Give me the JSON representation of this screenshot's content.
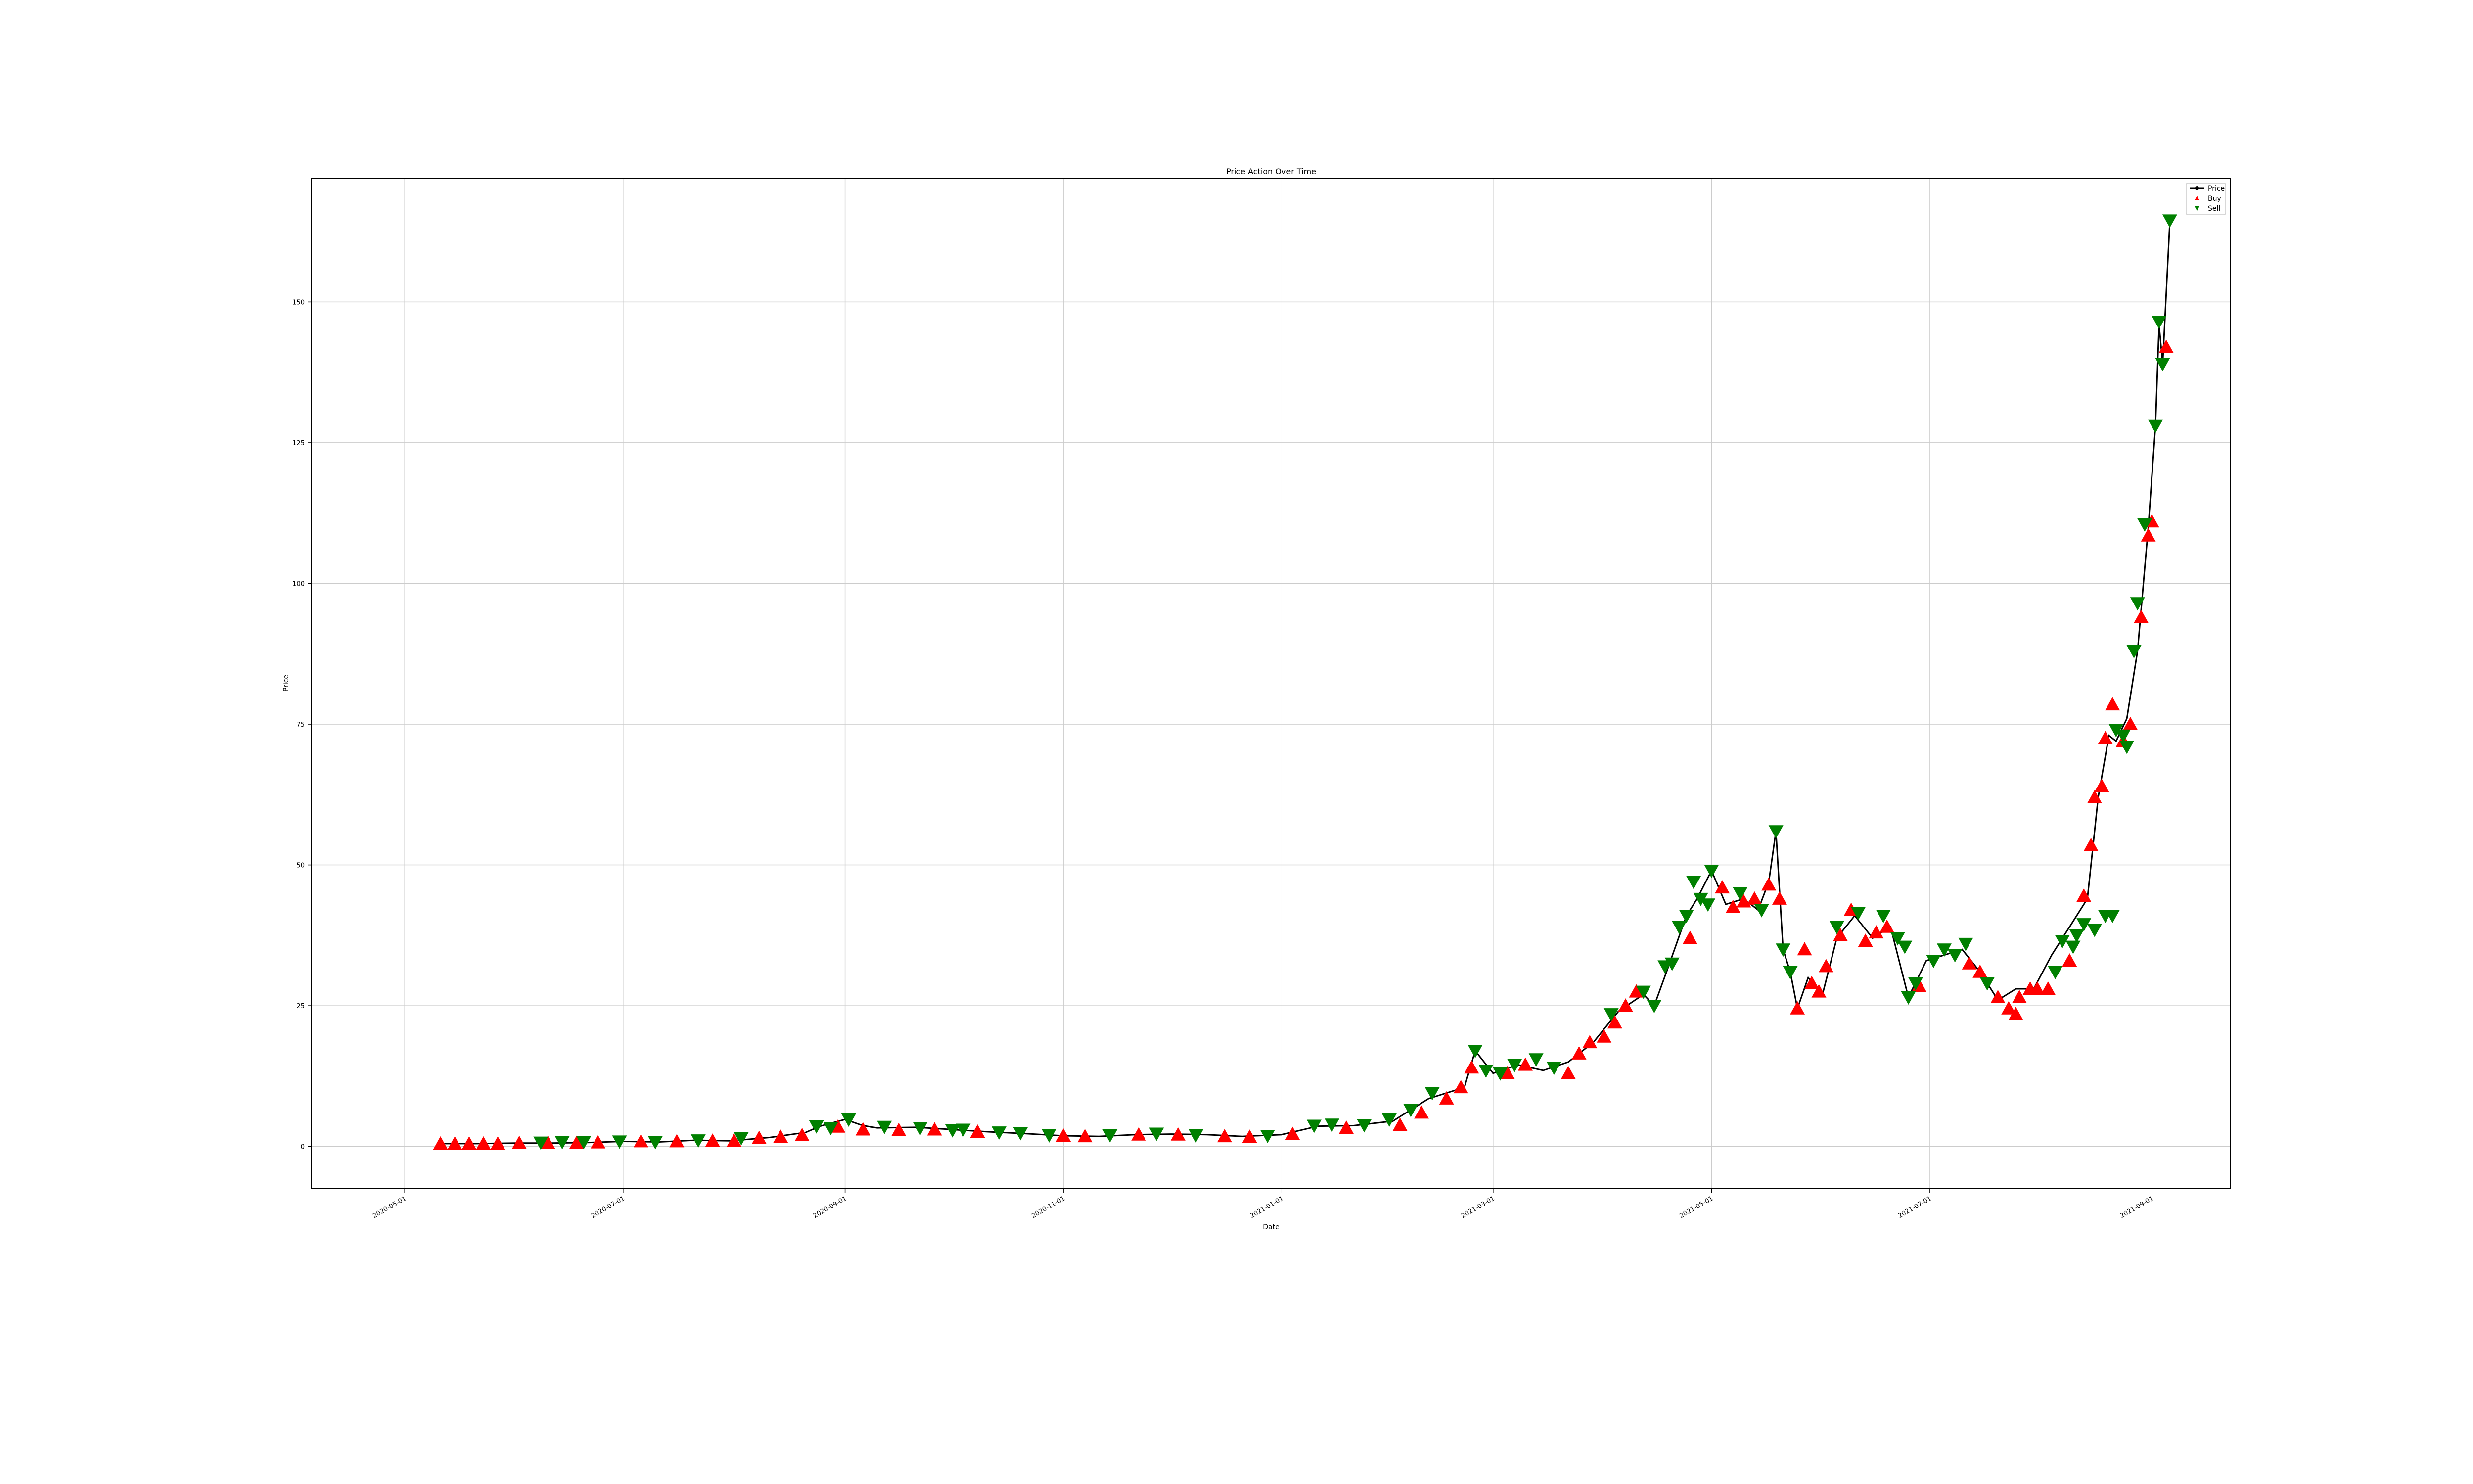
{
  "chart_data": {
    "type": "line",
    "title": "Price Action Over Time",
    "xlabel": "Date",
    "ylabel": "Price",
    "x_range": [
      "2020-04-05",
      "2021-09-23"
    ],
    "ylim": [
      -7.5,
      172
    ],
    "y_ticks": [
      0,
      25,
      50,
      75,
      100,
      125,
      150
    ],
    "x_ticks": [
      "2020-05-01",
      "2020-07-01",
      "2020-09-01",
      "2020-11-01",
      "2021-01-01",
      "2021-03-01",
      "2021-05-01",
      "2021-07-01",
      "2021-09-01"
    ],
    "grid": true,
    "legend": {
      "position": "top-right",
      "entries": [
        {
          "label": "Price",
          "marker": "line-dot",
          "color": "#000000"
        },
        {
          "label": "Buy",
          "marker": "triangle-up",
          "color": "#ff0000"
        },
        {
          "label": "Sell",
          "marker": "triangle-down",
          "color": "#008000"
        }
      ]
    },
    "colors": {
      "price": "#000000",
      "buy": "#ff0000",
      "sell": "#008000",
      "grid": "#cccccc"
    },
    "series": [
      {
        "name": "Price",
        "points": [
          [
            "2020-05-11",
            0.5
          ],
          [
            "2020-05-21",
            0.5
          ],
          [
            "2020-06-01",
            0.6
          ],
          [
            "2020-06-11",
            0.6
          ],
          [
            "2020-06-21",
            0.7
          ],
          [
            "2020-07-01",
            0.9
          ],
          [
            "2020-07-11",
            0.8
          ],
          [
            "2020-07-21",
            1.1
          ],
          [
            "2020-07-31",
            1.0
          ],
          [
            "2020-08-11",
            1.6
          ],
          [
            "2020-08-21",
            2.5
          ],
          [
            "2020-08-25",
            3.6
          ],
          [
            "2020-09-01",
            4.8
          ],
          [
            "2020-09-06",
            3.7
          ],
          [
            "2020-09-10",
            3.3
          ],
          [
            "2020-09-21",
            3.4
          ],
          [
            "2020-10-01",
            3.0
          ],
          [
            "2020-10-11",
            2.6
          ],
          [
            "2020-10-21",
            2.3
          ],
          [
            "2020-11-01",
            1.9
          ],
          [
            "2020-11-11",
            1.8
          ],
          [
            "2020-11-21",
            2.1
          ],
          [
            "2020-12-01",
            2.2
          ],
          [
            "2020-12-11",
            2.1
          ],
          [
            "2020-12-21",
            1.8
          ],
          [
            "2021-01-01",
            2.1
          ],
          [
            "2021-01-11",
            3.6
          ],
          [
            "2021-01-21",
            3.7
          ],
          [
            "2021-02-01",
            4.5
          ],
          [
            "2021-02-11",
            8.5
          ],
          [
            "2021-02-21",
            10.5
          ],
          [
            "2021-02-24",
            17.0
          ],
          [
            "2021-03-01",
            13.0
          ],
          [
            "2021-03-08",
            14.5
          ],
          [
            "2021-03-15",
            13.5
          ],
          [
            "2021-03-22",
            15.0
          ],
          [
            "2021-03-29",
            18.5
          ],
          [
            "2021-04-05",
            24.0
          ],
          [
            "2021-04-12",
            27.0
          ],
          [
            "2021-04-15",
            25.0
          ],
          [
            "2021-04-19",
            32.0
          ],
          [
            "2021-04-24",
            41.0
          ],
          [
            "2021-04-27",
            44.0
          ],
          [
            "2021-05-01",
            49.0
          ],
          [
            "2021-05-05",
            43.0
          ],
          [
            "2021-05-10",
            44.0
          ],
          [
            "2021-05-14",
            42.0
          ],
          [
            "2021-05-17",
            47.0
          ],
          [
            "2021-05-19",
            56.0
          ],
          [
            "2021-05-21",
            35.0
          ],
          [
            "2021-05-23",
            31.0
          ],
          [
            "2021-05-25",
            24.5
          ],
          [
            "2021-05-28",
            30.0
          ],
          [
            "2021-06-01",
            27.0
          ],
          [
            "2021-06-05",
            37.0
          ],
          [
            "2021-06-10",
            41.0
          ],
          [
            "2021-06-15",
            37.0
          ],
          [
            "2021-06-20",
            39.0
          ],
          [
            "2021-06-25",
            26.5
          ],
          [
            "2021-06-30",
            33.0
          ],
          [
            "2021-07-05",
            34.0
          ],
          [
            "2021-07-10",
            35.0
          ],
          [
            "2021-07-15",
            31.0
          ],
          [
            "2021-07-20",
            26.0
          ],
          [
            "2021-07-25",
            28.0
          ],
          [
            "2021-07-30",
            28.0
          ],
          [
            "2021-08-04",
            34.0
          ],
          [
            "2021-08-09",
            39.0
          ],
          [
            "2021-08-14",
            44.0
          ],
          [
            "2021-08-17",
            62.0
          ],
          [
            "2021-08-20",
            73.0
          ],
          [
            "2021-08-22",
            72.0
          ],
          [
            "2021-08-25",
            76.0
          ],
          [
            "2021-08-28",
            88.0
          ],
          [
            "2021-08-31",
            110.0
          ],
          [
            "2021-09-02",
            128.0
          ],
          [
            "2021-09-03",
            146.0
          ],
          [
            "2021-09-04",
            139.0
          ],
          [
            "2021-09-06",
            164.0
          ]
        ]
      },
      {
        "name": "Buy",
        "points": [
          [
            "2020-05-11",
            0.5
          ],
          [
            "2020-05-15",
            0.5
          ],
          [
            "2020-05-19",
            0.5
          ],
          [
            "2020-05-23",
            0.5
          ],
          [
            "2020-05-27",
            0.5
          ],
          [
            "2020-06-02",
            0.6
          ],
          [
            "2020-06-10",
            0.6
          ],
          [
            "2020-06-18",
            0.6
          ],
          [
            "2020-06-24",
            0.7
          ],
          [
            "2020-07-06",
            0.9
          ],
          [
            "2020-07-16",
            0.9
          ],
          [
            "2020-07-26",
            1.0
          ],
          [
            "2020-08-01",
            1.0
          ],
          [
            "2020-08-08",
            1.5
          ],
          [
            "2020-08-14",
            1.7
          ],
          [
            "2020-08-20",
            2.0
          ],
          [
            "2020-08-30",
            3.5
          ],
          [
            "2020-09-06",
            3.0
          ],
          [
            "2020-09-16",
            2.9
          ],
          [
            "2020-09-26",
            3.0
          ],
          [
            "2020-10-08",
            2.6
          ],
          [
            "2020-11-01",
            1.9
          ],
          [
            "2020-11-07",
            1.8
          ],
          [
            "2020-11-22",
            2.1
          ],
          [
            "2020-12-03",
            2.1
          ],
          [
            "2020-12-16",
            1.8
          ],
          [
            "2020-12-23",
            1.7
          ],
          [
            "2021-01-04",
            2.2
          ],
          [
            "2021-01-19",
            3.3
          ],
          [
            "2021-02-03",
            3.8
          ],
          [
            "2021-02-09",
            6.0
          ],
          [
            "2021-02-16",
            8.5
          ],
          [
            "2021-02-20",
            10.5
          ],
          [
            "2021-02-23",
            14.0
          ],
          [
            "2021-03-05",
            13.0
          ],
          [
            "2021-03-10",
            14.5
          ],
          [
            "2021-03-22",
            13.0
          ],
          [
            "2021-03-25",
            16.5
          ],
          [
            "2021-03-28",
            18.5
          ],
          [
            "2021-04-01",
            19.5
          ],
          [
            "2021-04-04",
            22.0
          ],
          [
            "2021-04-07",
            25.0
          ],
          [
            "2021-04-10",
            27.5
          ],
          [
            "2021-04-25",
            37.0
          ],
          [
            "2021-05-04",
            46.0
          ],
          [
            "2021-05-07",
            42.5
          ],
          [
            "2021-05-10",
            43.5
          ],
          [
            "2021-05-13",
            44.0
          ],
          [
            "2021-05-17",
            46.5
          ],
          [
            "2021-05-20",
            44.0
          ],
          [
            "2021-05-25",
            24.5
          ],
          [
            "2021-05-27",
            35.0
          ],
          [
            "2021-05-29",
            29.0
          ],
          [
            "2021-05-31",
            27.5
          ],
          [
            "2021-06-02",
            32.0
          ],
          [
            "2021-06-06",
            37.5
          ],
          [
            "2021-06-09",
            42.0
          ],
          [
            "2021-06-13",
            36.5
          ],
          [
            "2021-06-16",
            38.0
          ],
          [
            "2021-06-19",
            39.0
          ],
          [
            "2021-06-28",
            28.5
          ],
          [
            "2021-07-12",
            32.5
          ],
          [
            "2021-07-15",
            31.0
          ],
          [
            "2021-07-20",
            26.5
          ],
          [
            "2021-07-23",
            24.5
          ],
          [
            "2021-07-25",
            23.5
          ],
          [
            "2021-07-26",
            26.5
          ],
          [
            "2021-07-29",
            28.0
          ],
          [
            "2021-07-31",
            28.0
          ],
          [
            "2021-08-03",
            28.0
          ],
          [
            "2021-08-09",
            33.0
          ],
          [
            "2021-08-13",
            44.5
          ],
          [
            "2021-08-15",
            53.5
          ],
          [
            "2021-08-16",
            62.0
          ],
          [
            "2021-08-18",
            64.0
          ],
          [
            "2021-08-19",
            72.5
          ],
          [
            "2021-08-21",
            78.5
          ],
          [
            "2021-08-24",
            72.0
          ],
          [
            "2021-08-26",
            75.0
          ],
          [
            "2021-08-29",
            94.0
          ],
          [
            "2021-08-31",
            108.5
          ],
          [
            "2021-09-01",
            111.0
          ],
          [
            "2021-09-05",
            142.0
          ]
        ]
      },
      {
        "name": "Sell",
        "points": [
          [
            "2020-06-08",
            0.7
          ],
          [
            "2020-06-14",
            0.8
          ],
          [
            "2020-06-20",
            0.8
          ],
          [
            "2020-06-30",
            0.9
          ],
          [
            "2020-07-10",
            0.8
          ],
          [
            "2020-07-22",
            1.1
          ],
          [
            "2020-08-03",
            1.5
          ],
          [
            "2020-08-24",
            3.6
          ],
          [
            "2020-08-28",
            3.3
          ],
          [
            "2020-09-02",
            4.8
          ],
          [
            "2020-09-12",
            3.5
          ],
          [
            "2020-09-22",
            3.3
          ],
          [
            "2020-10-01",
            2.9
          ],
          [
            "2020-10-04",
            3.0
          ],
          [
            "2020-10-14",
            2.5
          ],
          [
            "2020-10-20",
            2.4
          ],
          [
            "2020-10-28",
            2.0
          ],
          [
            "2020-11-14",
            2.0
          ],
          [
            "2020-11-27",
            2.3
          ],
          [
            "2020-12-08",
            2.0
          ],
          [
            "2020-12-28",
            1.9
          ],
          [
            "2021-01-10",
            3.7
          ],
          [
            "2021-01-15",
            3.9
          ],
          [
            "2021-01-24",
            3.8
          ],
          [
            "2021-01-31",
            4.8
          ],
          [
            "2021-02-06",
            6.5
          ],
          [
            "2021-02-12",
            9.5
          ],
          [
            "2021-02-24",
            17.0
          ],
          [
            "2021-02-27",
            13.5
          ],
          [
            "2021-03-03",
            13.0
          ],
          [
            "2021-03-07",
            14.5
          ],
          [
            "2021-03-13",
            15.5
          ],
          [
            "2021-03-18",
            14.0
          ],
          [
            "2021-04-03",
            23.5
          ],
          [
            "2021-04-12",
            27.5
          ],
          [
            "2021-04-15",
            25.0
          ],
          [
            "2021-04-18",
            32.0
          ],
          [
            "2021-04-20",
            32.5
          ],
          [
            "2021-04-22",
            39.0
          ],
          [
            "2021-04-24",
            41.0
          ],
          [
            "2021-04-26",
            47.0
          ],
          [
            "2021-04-28",
            44.0
          ],
          [
            "2021-04-30",
            43.0
          ],
          [
            "2021-05-01",
            49.0
          ],
          [
            "2021-05-09",
            45.0
          ],
          [
            "2021-05-15",
            42.0
          ],
          [
            "2021-05-19",
            56.0
          ],
          [
            "2021-05-21",
            35.0
          ],
          [
            "2021-05-23",
            31.0
          ],
          [
            "2021-06-05",
            39.0
          ],
          [
            "2021-06-11",
            41.5
          ],
          [
            "2021-06-18",
            41.0
          ],
          [
            "2021-06-22",
            37.0
          ],
          [
            "2021-06-24",
            35.5
          ],
          [
            "2021-06-25",
            26.5
          ],
          [
            "2021-06-27",
            29.0
          ],
          [
            "2021-07-02",
            33.0
          ],
          [
            "2021-07-05",
            35.0
          ],
          [
            "2021-07-08",
            34.0
          ],
          [
            "2021-07-11",
            36.0
          ],
          [
            "2021-07-17",
            29.0
          ],
          [
            "2021-08-05",
            31.0
          ],
          [
            "2021-08-07",
            36.5
          ],
          [
            "2021-08-10",
            35.5
          ],
          [
            "2021-08-11",
            37.5
          ],
          [
            "2021-08-13",
            39.5
          ],
          [
            "2021-08-16",
            38.5
          ],
          [
            "2021-08-19",
            41.0
          ],
          [
            "2021-08-21",
            41.0
          ],
          [
            "2021-08-22",
            74.0
          ],
          [
            "2021-08-24",
            73.0
          ],
          [
            "2021-08-25",
            71.0
          ],
          [
            "2021-08-27",
            88.0
          ],
          [
            "2021-08-28",
            96.5
          ],
          [
            "2021-08-30",
            110.5
          ],
          [
            "2021-09-02",
            128.0
          ],
          [
            "2021-09-03",
            146.5
          ],
          [
            "2021-09-04",
            139.0
          ],
          [
            "2021-09-06",
            164.5
          ]
        ]
      }
    ]
  }
}
